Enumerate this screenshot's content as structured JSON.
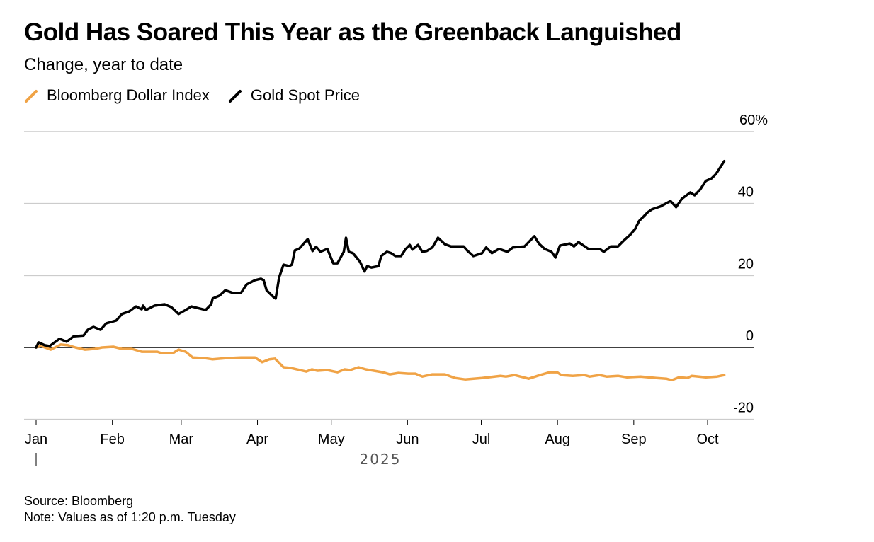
{
  "header": {
    "title": "Gold Has Soared This Year as the Greenback Languished",
    "subtitle": "Change, year to date"
  },
  "legend": [
    {
      "label": "Bloomberg Dollar Index",
      "color": "#f0a346"
    },
    {
      "label": "Gold Spot Price",
      "color": "#000000"
    }
  ],
  "footer": {
    "source": "Source: Bloomberg",
    "note": "Note: Values as of 1:20 p.m. Tuesday"
  },
  "chart_data": {
    "type": "line",
    "title": "Gold Has Soared This Year as the Greenback Languished",
    "subtitle": "Change, year to date",
    "xlabel": "2025",
    "ylabel": "",
    "x_unit": "days since Jan 1, 2025",
    "xlim": [
      0,
      280
    ],
    "ylim": [
      -20,
      60
    ],
    "y_ticks": [
      {
        "value": 60,
        "label": "60%"
      },
      {
        "value": 40,
        "label": "40"
      },
      {
        "value": 20,
        "label": "20"
      },
      {
        "value": 0,
        "label": "0"
      },
      {
        "value": -20,
        "label": "-20"
      }
    ],
    "x_ticks": [
      {
        "day": 0,
        "label": "Jan"
      },
      {
        "day": 31,
        "label": "Feb"
      },
      {
        "day": 59,
        "label": "Mar"
      },
      {
        "day": 90,
        "label": "Apr"
      },
      {
        "day": 120,
        "label": "May"
      },
      {
        "day": 151,
        "label": "Jun"
      },
      {
        "day": 181,
        "label": "Jul"
      },
      {
        "day": 212,
        "label": "Aug"
      },
      {
        "day": 243,
        "label": "Sep"
      },
      {
        "day": 273,
        "label": "Oct"
      }
    ],
    "year_label": "2025",
    "grid": true,
    "zero_line": true,
    "legend_position": "top-left",
    "series": [
      {
        "name": "Bloomberg Dollar Index",
        "color": "#f0a346",
        "points": [
          [
            0,
            0
          ],
          [
            2,
            0.4
          ],
          [
            6,
            -0.6
          ],
          [
            10,
            0.8
          ],
          [
            13,
            0.6
          ],
          [
            16,
            0
          ],
          [
            19.8,
            -0.6
          ],
          [
            23.9,
            -0.4
          ],
          [
            26.8,
            0
          ],
          [
            31.4,
            0.2
          ],
          [
            34.9,
            -0.4
          ],
          [
            38.9,
            -0.4
          ],
          [
            42.9,
            -1.2
          ],
          [
            49.3,
            -1.2
          ],
          [
            51,
            -1.6
          ],
          [
            55.6,
            -1.6
          ],
          [
            57.9,
            -0.6
          ],
          [
            60.8,
            -1.2
          ],
          [
            63.7,
            -2.8
          ],
          [
            68.9,
            -3
          ],
          [
            71.8,
            -3.3
          ],
          [
            76.9,
            -3
          ],
          [
            83.3,
            -2.8
          ],
          [
            89,
            -2.8
          ],
          [
            91.9,
            -4.1
          ],
          [
            94.8,
            -3.3
          ],
          [
            97.1,
            -3.1
          ],
          [
            100.6,
            -5.5
          ],
          [
            103.5,
            -5.7
          ],
          [
            109.8,
            -6.7
          ],
          [
            112.1,
            -6.1
          ],
          [
            114.4,
            -6.5
          ],
          [
            118.4,
            -6.3
          ],
          [
            122.5,
            -6.9
          ],
          [
            125.4,
            -6.1
          ],
          [
            127.7,
            -6.3
          ],
          [
            131.1,
            -5.5
          ],
          [
            134,
            -6.1
          ],
          [
            140.9,
            -6.9
          ],
          [
            143.8,
            -7.5
          ],
          [
            147.3,
            -7.1
          ],
          [
            151.3,
            -7.3
          ],
          [
            154.2,
            -7.3
          ],
          [
            157,
            -8.1
          ],
          [
            161.1,
            -7.5
          ],
          [
            166.2,
            -7.5
          ],
          [
            170.3,
            -8.5
          ],
          [
            174.4,
            -8.9
          ],
          [
            181.3,
            -8.5
          ],
          [
            188.8,
            -7.9
          ],
          [
            191,
            -8.1
          ],
          [
            194.5,
            -7.7
          ],
          [
            200.3,
            -8.7
          ],
          [
            204.9,
            -7.7
          ],
          [
            208.9,
            -6.9
          ],
          [
            211.8,
            -6.9
          ],
          [
            213.5,
            -7.7
          ],
          [
            218.2,
            -7.9
          ],
          [
            222.8,
            -7.7
          ],
          [
            225.1,
            -8.1
          ],
          [
            229.1,
            -7.7
          ],
          [
            232,
            -8.1
          ],
          [
            236.6,
            -7.9
          ],
          [
            240.1,
            -8.3
          ],
          [
            245.8,
            -8.1
          ],
          [
            252.2,
            -8.5
          ],
          [
            256.2,
            -8.7
          ],
          [
            258.5,
            -9.1
          ],
          [
            261.4,
            -8.3
          ],
          [
            264.8,
            -8.5
          ],
          [
            266.6,
            -7.9
          ],
          [
            272.3,
            -8.3
          ],
          [
            276.9,
            -8.1
          ],
          [
            279.8,
            -7.7
          ]
        ]
      },
      {
        "name": "Gold Spot Price",
        "color": "#000000",
        "points": [
          [
            0,
            0
          ],
          [
            1,
            1.4
          ],
          [
            3.5,
            0.6
          ],
          [
            5.5,
            0.4
          ],
          [
            9.5,
            2.4
          ],
          [
            12.4,
            1.6
          ],
          [
            15.3,
            3.1
          ],
          [
            19.3,
            3.3
          ],
          [
            21,
            4.9
          ],
          [
            23.3,
            5.7
          ],
          [
            26.2,
            4.9
          ],
          [
            28.5,
            6.7
          ],
          [
            32.6,
            7.5
          ],
          [
            34.9,
            9.3
          ],
          [
            37.8,
            10
          ],
          [
            40.6,
            11.4
          ],
          [
            42.9,
            10.6
          ],
          [
            43.5,
            11.6
          ],
          [
            44.7,
            10.4
          ],
          [
            48.1,
            11.6
          ],
          [
            52.2,
            12
          ],
          [
            55,
            11.2
          ],
          [
            57.9,
            9.3
          ],
          [
            60.8,
            10.4
          ],
          [
            63.1,
            11.4
          ],
          [
            66.6,
            10.8
          ],
          [
            68.9,
            10.4
          ],
          [
            71.2,
            12
          ],
          [
            71.8,
            13.6
          ],
          [
            74.6,
            14.4
          ],
          [
            76.9,
            15.9
          ],
          [
            79.8,
            15.2
          ],
          [
            83.3,
            15.2
          ],
          [
            85.6,
            17.5
          ],
          [
            89,
            18.7
          ],
          [
            91.4,
            19.1
          ],
          [
            92.5,
            18.7
          ],
          [
            93.7,
            15.9
          ],
          [
            96.5,
            14
          ],
          [
            97.4,
            13.6
          ],
          [
            98.8,
            19.5
          ],
          [
            100.6,
            23
          ],
          [
            102.9,
            22.6
          ],
          [
            104,
            23
          ],
          [
            105.2,
            27
          ],
          [
            106.9,
            27.4
          ],
          [
            110.4,
            30.1
          ],
          [
            112.4,
            26.8
          ],
          [
            113.8,
            28
          ],
          [
            115.6,
            26.6
          ],
          [
            118.4,
            27.4
          ],
          [
            120.8,
            23.4
          ],
          [
            122.5,
            23.4
          ],
          [
            125.1,
            26.6
          ],
          [
            126,
            30.5
          ],
          [
            127.1,
            26.6
          ],
          [
            128.8,
            26.2
          ],
          [
            131.7,
            23.8
          ],
          [
            133.5,
            21.1
          ],
          [
            134.6,
            22.6
          ],
          [
            136.3,
            22.2
          ],
          [
            139.2,
            22.6
          ],
          [
            140.3,
            25.4
          ],
          [
            142.6,
            26.6
          ],
          [
            144.4,
            26.2
          ],
          [
            146.1,
            25.4
          ],
          [
            148.4,
            25.4
          ],
          [
            150.1,
            27.2
          ],
          [
            151.9,
            28.5
          ],
          [
            153,
            27.2
          ],
          [
            155.3,
            28.5
          ],
          [
            157,
            26.6
          ],
          [
            158.8,
            26.8
          ],
          [
            161.1,
            27.8
          ],
          [
            163.4,
            30.5
          ],
          [
            166.2,
            28.7
          ],
          [
            168.6,
            28.1
          ],
          [
            173.8,
            28.1
          ],
          [
            175.5,
            26.8
          ],
          [
            177.8,
            25.4
          ],
          [
            181.3,
            26.2
          ],
          [
            183,
            27.8
          ],
          [
            185.3,
            26.2
          ],
          [
            188.2,
            27.4
          ],
          [
            191.6,
            26.6
          ],
          [
            193.9,
            27.8
          ],
          [
            198.6,
            28.1
          ],
          [
            202.6,
            30.9
          ],
          [
            204.4,
            28.9
          ],
          [
            206.7,
            27.4
          ],
          [
            209.5,
            26.6
          ],
          [
            211.2,
            25
          ],
          [
            213,
            28.3
          ],
          [
            217,
            28.9
          ],
          [
            218.7,
            28.1
          ],
          [
            220.5,
            29.3
          ],
          [
            224.5,
            27.4
          ],
          [
            229.1,
            27.4
          ],
          [
            230.8,
            26.6
          ],
          [
            233.7,
            28.1
          ],
          [
            236.6,
            28.1
          ],
          [
            238.9,
            29.7
          ],
          [
            241.8,
            31.5
          ],
          [
            243.5,
            32.9
          ],
          [
            245.2,
            35.2
          ],
          [
            247,
            36.4
          ],
          [
            248.7,
            37.6
          ],
          [
            250.4,
            38.4
          ],
          [
            253.9,
            39.2
          ],
          [
            257.9,
            40.7
          ],
          [
            260.2,
            39
          ],
          [
            262.5,
            41.3
          ],
          [
            266,
            43.1
          ],
          [
            267.7,
            42.3
          ],
          [
            270,
            43.9
          ],
          [
            272.3,
            46.3
          ],
          [
            274.6,
            47
          ],
          [
            276.4,
            48.2
          ],
          [
            279.8,
            51.8
          ]
        ]
      }
    ]
  }
}
